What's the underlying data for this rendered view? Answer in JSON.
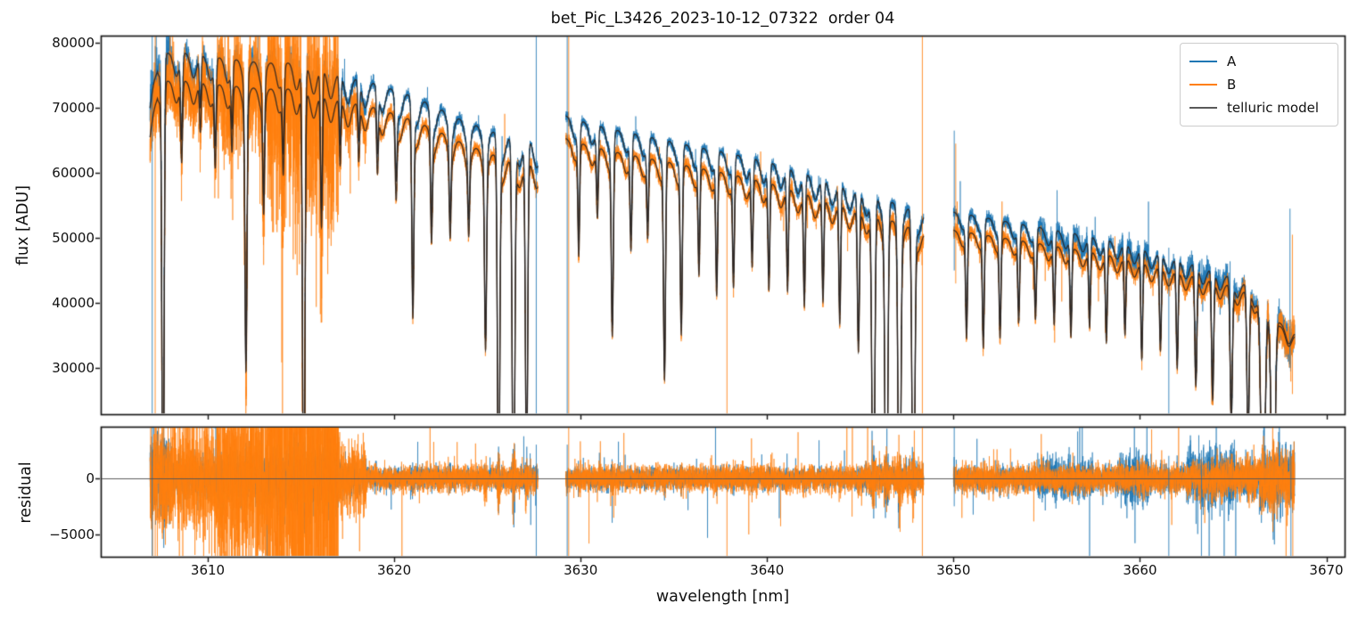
{
  "chart_data": {
    "type": "line",
    "title": "bet_Pic_L3426_2023-10-12_07322  order 04",
    "xlabel": "wavelength [nm]",
    "xlim": [
      3604.26,
      3670.98
    ],
    "xticks": [
      3610,
      3620,
      3630,
      3640,
      3650,
      3660,
      3670
    ],
    "xticklabels": [
      "3610",
      "3620",
      "3630",
      "3640",
      "3650",
      "3660",
      "3670"
    ],
    "grid": false,
    "panels": [
      {
        "ylabel": "flux [ADU]",
        "ylim": [
          22900,
          81100
        ],
        "yticks": [
          80000,
          70000,
          60000,
          50000,
          40000,
          30000
        ],
        "yticklabels": [
          "80000",
          "70000",
          "60000",
          "50000",
          "40000",
          "30000"
        ]
      },
      {
        "ylabel": "residual",
        "ylim": [
          -7000,
          4600
        ],
        "yticks": [
          0,
          -5000
        ],
        "yticklabels": [
          "0",
          "−5000"
        ],
        "zero_line": true
      }
    ],
    "legend": {
      "position": "upper right",
      "entries": [
        {
          "label": "A",
          "color": "#1f77b4"
        },
        {
          "label": "B",
          "color": "#ff7f0e"
        },
        {
          "label": "telluric model",
          "color": "#595959"
        }
      ]
    },
    "colors": {
      "series_A": "#1f77b4",
      "series_B": "#ff7f0e",
      "telluric_model": "#2a2522",
      "spine": "#1a1a1a",
      "zero_line": "#555555",
      "background": "#ffffff"
    },
    "segments": [
      [
        3606.9,
        3627.7
      ],
      [
        3629.2,
        3648.4
      ],
      [
        3650.0,
        3668.3
      ]
    ],
    "continuum_A": [
      [
        3606.9,
        70000
      ],
      [
        3607.3,
        78500
      ],
      [
        3608.8,
        78500
      ],
      [
        3610.0,
        78000
      ],
      [
        3611.5,
        77500
      ],
      [
        3613.0,
        77000
      ],
      [
        3614.5,
        77000
      ],
      [
        3616.0,
        76000
      ],
      [
        3617.5,
        74800
      ],
      [
        3619.0,
        73800
      ],
      [
        3620.5,
        72400
      ],
      [
        3622.0,
        70600
      ],
      [
        3623.5,
        68400
      ],
      [
        3625.0,
        66700
      ],
      [
        3626.5,
        65200
      ],
      [
        3627.7,
        65000
      ],
      [
        3629.2,
        68800
      ],
      [
        3630.5,
        67600
      ],
      [
        3632.0,
        66600
      ],
      [
        3634.0,
        65400
      ],
      [
        3636.0,
        64200
      ],
      [
        3638.0,
        63100
      ],
      [
        3640.0,
        61800
      ],
      [
        3642.0,
        60000
      ],
      [
        3644.0,
        58100
      ],
      [
        3646.0,
        56300
      ],
      [
        3647.5,
        54700
      ],
      [
        3648.4,
        53700
      ],
      [
        3650.0,
        54000
      ],
      [
        3651.5,
        53300
      ],
      [
        3653.0,
        52500
      ],
      [
        3655.0,
        51500
      ],
      [
        3657.0,
        50500
      ],
      [
        3659.0,
        49300
      ],
      [
        3661.0,
        47700
      ],
      [
        3663.0,
        46000
      ],
      [
        3664.5,
        44500
      ],
      [
        3666.0,
        42500
      ],
      [
        3666.8,
        40000
      ],
      [
        3667.5,
        37000
      ],
      [
        3668.3,
        35500
      ]
    ],
    "continuum_B": [
      [
        3606.9,
        65500
      ],
      [
        3607.3,
        74200
      ],
      [
        3608.8,
        74200
      ],
      [
        3610.0,
        73800
      ],
      [
        3611.5,
        73400
      ],
      [
        3613.0,
        73000
      ],
      [
        3614.5,
        73000
      ],
      [
        3616.0,
        72100
      ],
      [
        3617.5,
        71000
      ],
      [
        3619.0,
        70100
      ],
      [
        3620.5,
        68700
      ],
      [
        3622.0,
        67000
      ],
      [
        3623.5,
        64900
      ],
      [
        3625.0,
        63200
      ],
      [
        3626.5,
        61700
      ],
      [
        3627.7,
        61600
      ],
      [
        3629.2,
        65300
      ],
      [
        3630.5,
        64200
      ],
      [
        3632.0,
        63200
      ],
      [
        3634.0,
        62100
      ],
      [
        3636.0,
        61000
      ],
      [
        3638.0,
        59900
      ],
      [
        3640.0,
        58600
      ],
      [
        3642.0,
        56900
      ],
      [
        3644.0,
        55100
      ],
      [
        3646.0,
        53400
      ],
      [
        3647.5,
        51900
      ],
      [
        3648.4,
        50900
      ],
      [
        3650.0,
        51200
      ],
      [
        3651.5,
        50600
      ],
      [
        3653.0,
        49900
      ],
      [
        3655.0,
        49000
      ],
      [
        3657.0,
        48100
      ],
      [
        3659.0,
        47100
      ],
      [
        3661.0,
        45600
      ],
      [
        3663.0,
        44200
      ],
      [
        3664.5,
        43100
      ],
      [
        3666.0,
        41400
      ],
      [
        3666.8,
        39200
      ],
      [
        3667.5,
        36500
      ],
      [
        3668.3,
        35100
      ]
    ],
    "telluric_lines": [
      [
        3607.6,
        1.0,
        0.055
      ],
      [
        3608.6,
        0.16,
        0.05
      ],
      [
        3609.6,
        0.1,
        0.045
      ],
      [
        3610.4,
        0.16,
        0.05
      ],
      [
        3611.3,
        0.12,
        0.045
      ],
      [
        3612.05,
        0.55,
        0.055
      ],
      [
        3613.0,
        0.22,
        0.05
      ],
      [
        3614.05,
        0.16,
        0.05
      ],
      [
        3615.15,
        1.0,
        0.06
      ],
      [
        3616.1,
        0.28,
        0.05
      ],
      [
        3617.1,
        0.14,
        0.045
      ],
      [
        3618.1,
        0.12,
        0.045
      ],
      [
        3619.1,
        0.13,
        0.045
      ],
      [
        3620.1,
        0.16,
        0.05
      ],
      [
        3621.0,
        0.42,
        0.055
      ],
      [
        3622.0,
        0.22,
        0.05
      ],
      [
        3623.0,
        0.18,
        0.05
      ],
      [
        3624.0,
        0.16,
        0.05
      ],
      [
        3624.9,
        0.42,
        0.055
      ],
      [
        3625.6,
        0.9,
        0.06
      ],
      [
        3626.4,
        1.0,
        0.065
      ],
      [
        3627.1,
        0.78,
        0.06
      ],
      [
        3629.9,
        0.25,
        0.05
      ],
      [
        3630.9,
        0.16,
        0.05
      ],
      [
        3631.7,
        0.42,
        0.055
      ],
      [
        3632.7,
        0.22,
        0.05
      ],
      [
        3633.6,
        0.18,
        0.05
      ],
      [
        3634.5,
        0.52,
        0.055
      ],
      [
        3635.4,
        0.4,
        0.055
      ],
      [
        3636.35,
        0.25,
        0.05
      ],
      [
        3637.3,
        0.3,
        0.05
      ],
      [
        3638.2,
        0.27,
        0.05
      ],
      [
        3639.2,
        0.22,
        0.05
      ],
      [
        3640.1,
        0.27,
        0.05
      ],
      [
        3641.1,
        0.27,
        0.05
      ],
      [
        3642.0,
        0.3,
        0.05
      ],
      [
        3643.0,
        0.28,
        0.05
      ],
      [
        3643.9,
        0.33,
        0.05
      ],
      [
        3644.9,
        0.4,
        0.055
      ],
      [
        3645.7,
        1.0,
        0.07
      ],
      [
        3646.4,
        1.0,
        0.07
      ],
      [
        3647.1,
        1.0,
        0.07
      ],
      [
        3647.85,
        1.0,
        0.07
      ],
      [
        3650.7,
        0.3,
        0.05
      ],
      [
        3651.6,
        0.32,
        0.05
      ],
      [
        3652.5,
        0.28,
        0.05
      ],
      [
        3653.5,
        0.24,
        0.05
      ],
      [
        3654.4,
        0.22,
        0.05
      ],
      [
        3655.4,
        0.24,
        0.05
      ],
      [
        3656.3,
        0.27,
        0.05
      ],
      [
        3657.3,
        0.24,
        0.05
      ],
      [
        3658.2,
        0.28,
        0.05
      ],
      [
        3659.2,
        0.25,
        0.05
      ],
      [
        3660.1,
        0.32,
        0.05
      ],
      [
        3661.1,
        0.28,
        0.05
      ],
      [
        3662.0,
        0.33,
        0.05
      ],
      [
        3663.0,
        0.38,
        0.055
      ],
      [
        3663.9,
        0.42,
        0.055
      ],
      [
        3664.9,
        0.48,
        0.06
      ],
      [
        3665.8,
        0.55,
        0.06
      ],
      [
        3666.6,
        1.0,
        0.1
      ],
      [
        3667.15,
        1.0,
        0.09
      ]
    ],
    "scallops": {
      "spacing": 0.92,
      "width": 0.16,
      "base_depth": 0.045,
      "ramp": 0.02
    },
    "noise_regions": [
      [
        3604.0,
        3608.0,
        2000,
        2600
      ],
      [
        3608.0,
        3610.5,
        900,
        2600
      ],
      [
        3610.5,
        3613.2,
        1100,
        4500
      ],
      [
        3613.2,
        3617.0,
        1400,
        9000
      ],
      [
        3617.0,
        3618.5,
        700,
        1600
      ],
      [
        3618.5,
        3629.0,
        430,
        560
      ],
      [
        3629.0,
        3645.0,
        430,
        560
      ],
      [
        3645.0,
        3649.0,
        550,
        750
      ],
      [
        3649.0,
        3654.5,
        480,
        620
      ],
      [
        3654.5,
        3657.5,
        900,
        620
      ],
      [
        3657.5,
        3658.8,
        480,
        620
      ],
      [
        3658.8,
        3660.6,
        1100,
        680
      ],
      [
        3660.6,
        3662.5,
        520,
        640
      ],
      [
        3662.5,
        3665.2,
        1250,
        800
      ],
      [
        3665.2,
        3666.4,
        800,
        900
      ],
      [
        3666.4,
        3668.4,
        1400,
        1500
      ]
    ],
    "default_sigma": [
      450,
      550
    ],
    "spikes_flux": [
      [
        3607.02,
        "A",
        0,
        100000
      ],
      [
        3607.18,
        "B",
        0,
        100000
      ],
      [
        3627.62,
        "A",
        0,
        100000
      ],
      [
        3629.28,
        "A",
        0,
        100000
      ],
      [
        3629.36,
        "B",
        0,
        100000
      ],
      [
        3637.85,
        "B",
        0,
        63000
      ],
      [
        3648.33,
        "B",
        0,
        100000
      ],
      [
        3650.04,
        "A",
        45000,
        66500
      ],
      [
        3650.12,
        "B",
        43000,
        64500
      ],
      [
        3661.55,
        "A",
        0,
        48500
      ],
      [
        3668.05,
        "A",
        30000,
        54500
      ],
      [
        3668.18,
        "B",
        26000,
        50500
      ]
    ],
    "spikes_residual": [
      [
        3607.02,
        "A",
        -9000,
        9000
      ],
      [
        3607.18,
        "B",
        -9000,
        9000
      ],
      [
        3627.62,
        "A",
        -9000,
        3000
      ],
      [
        3629.28,
        "A",
        -9000,
        3000
      ],
      [
        3629.36,
        "B",
        -9000,
        9000
      ],
      [
        3637.85,
        "B",
        -9000,
        1500
      ],
      [
        3648.33,
        "B",
        -9000,
        9000
      ],
      [
        3650.04,
        "A",
        -2500,
        9000
      ],
      [
        3661.55,
        "A",
        -9000,
        2000
      ],
      [
        3663.3,
        "A",
        -9000,
        2500
      ],
      [
        3668.1,
        "A",
        -9000,
        3000
      ],
      [
        3668.2,
        "B",
        -9000,
        2500
      ]
    ]
  }
}
